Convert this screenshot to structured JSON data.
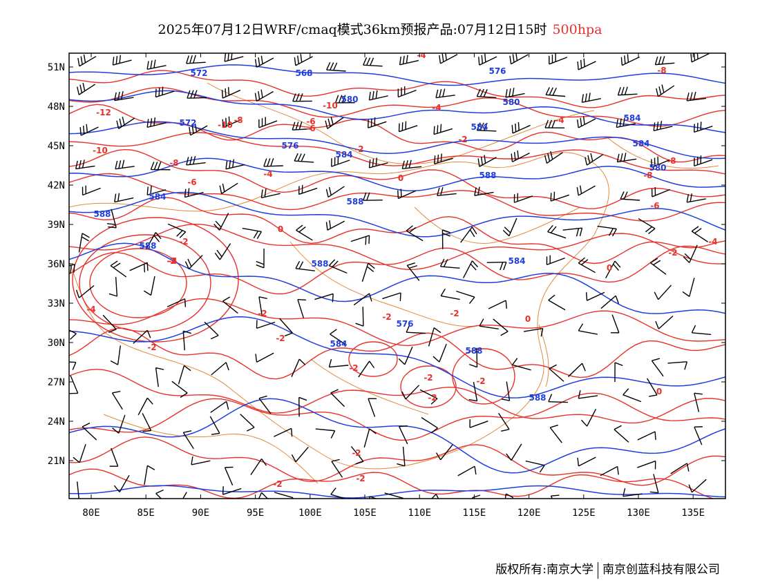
{
  "header": {
    "title_main": "2025年07月12日WRF/cmaq模式36km预报产品:07月12日15时",
    "title_level": "500hpa"
  },
  "footer": {
    "left": "版权所有:南京大学",
    "right": "南京创蓝科技有限公司"
  },
  "map": {
    "lon_labels": [
      "80E",
      "85E",
      "90E",
      "95E",
      "100E",
      "105E",
      "110E",
      "115E",
      "120E",
      "125E",
      "130E",
      "135E"
    ],
    "lat_labels": [
      "51N",
      "48N",
      "45N",
      "42N",
      "39N",
      "36N",
      "33N",
      "30N",
      "27N",
      "24N",
      "21N"
    ],
    "colors": {
      "temperature": "#e8302a",
      "geopotential": "#1e3ee0",
      "boundary": "#e08a3c",
      "wind": "#000000",
      "frame": "#000000"
    },
    "geopotential_labels": [
      "572",
      "568",
      "576",
      "580",
      "580",
      "572",
      "576",
      "584",
      "584",
      "584",
      "584",
      "588",
      "588",
      "588",
      "588",
      "588",
      "584",
      "584",
      "580",
      "576",
      "584",
      "588",
      "588"
    ],
    "temperature_labels": [
      "-12",
      "-10",
      "-10",
      "-8",
      "-6",
      "-6",
      "-4",
      "-2",
      "0",
      "-10",
      "-8",
      "-8",
      "-6",
      "-4",
      "-2",
      "-2",
      "-2",
      "0",
      "-4",
      "-2",
      "-4",
      "-2",
      "-2",
      "-2",
      "0",
      "-2",
      "-2",
      "-2",
      "-2",
      "-4",
      "-8",
      "-8",
      "-6",
      "-4",
      "-2",
      "0",
      "-2",
      "-2",
      "-2",
      "-2",
      "0",
      "-4"
    ]
  }
}
